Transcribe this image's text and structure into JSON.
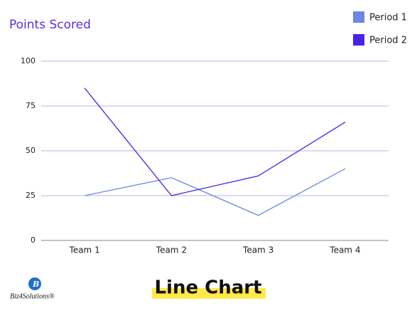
{
  "chart_data": {
    "type": "line",
    "title": "Points Scored",
    "categories": [
      "Team 1",
      "Team 2",
      "Team 3",
      "Team 4"
    ],
    "series": [
      {
        "name": "Period 1",
        "color": "#6b86e3",
        "values": [
          25,
          35,
          14,
          40
        ]
      },
      {
        "name": "Period 2",
        "color": "#4a22e6",
        "values": [
          85,
          25,
          36,
          66
        ]
      }
    ],
    "ylim": [
      0,
      100
    ],
    "yticks": [
      0,
      25,
      50,
      75,
      100
    ],
    "grid": true,
    "legend": "top-right"
  },
  "footer": {
    "caption": "Line Chart",
    "logo": "Biz4Solutions®"
  }
}
